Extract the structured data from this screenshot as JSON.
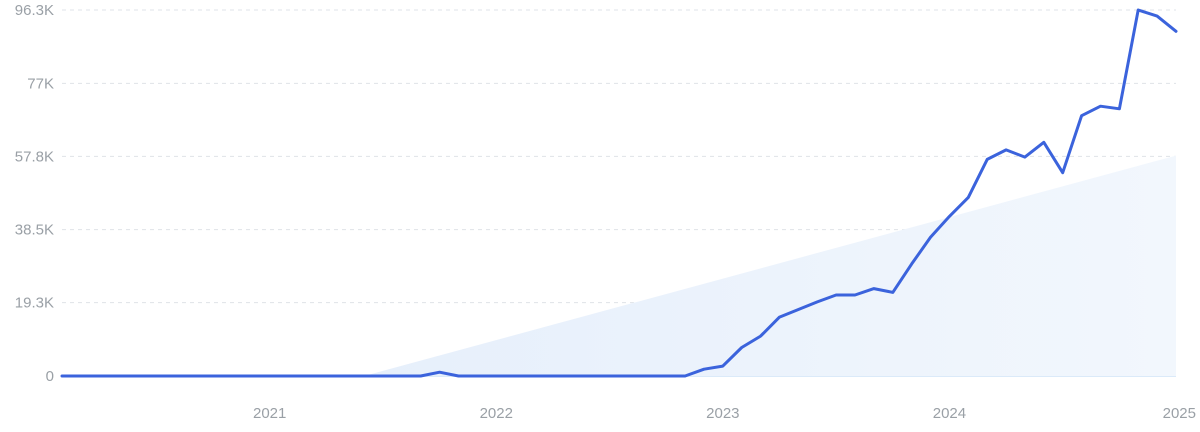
{
  "chart_data": {
    "type": "line",
    "title": "",
    "xlabel": "",
    "ylabel": "",
    "x_ticks": [
      "2021",
      "2022",
      "2023",
      "2024",
      "2025"
    ],
    "y_ticks": [
      "0",
      "19.3K",
      "38.5K",
      "57.8K",
      "77K",
      "96.3K"
    ],
    "y_tick_values": [
      0,
      19300,
      38500,
      57800,
      77000,
      96300
    ],
    "ylim": [
      0,
      96300
    ],
    "xlim": [
      "2020-02",
      "2025-01"
    ],
    "grid": true,
    "series": [
      {
        "x": [
          "2020-02",
          "2020-03",
          "2020-04",
          "2020-05",
          "2020-06",
          "2020-07",
          "2020-08",
          "2020-09",
          "2020-10",
          "2020-11",
          "2020-12",
          "2021-01",
          "2021-02",
          "2021-03",
          "2021-04",
          "2021-05",
          "2021-06",
          "2021-07",
          "2021-08",
          "2021-09",
          "2021-10",
          "2021-11",
          "2021-12",
          "2022-01",
          "2022-02",
          "2022-03",
          "2022-04",
          "2022-05",
          "2022-06",
          "2022-07",
          "2022-08",
          "2022-09",
          "2022-10",
          "2022-11",
          "2022-12",
          "2023-01",
          "2023-02",
          "2023-03",
          "2023-04",
          "2023-05",
          "2023-06",
          "2023-07",
          "2023-08",
          "2023-09",
          "2023-10",
          "2023-11",
          "2023-12",
          "2024-01",
          "2024-02",
          "2024-03",
          "2024-04",
          "2024-05",
          "2024-06",
          "2024-07",
          "2024-08",
          "2024-09",
          "2024-10",
          "2024-11",
          "2024-12",
          "2025-01"
        ],
        "values": [
          0,
          0,
          0,
          0,
          0,
          0,
          0,
          0,
          0,
          0,
          0,
          0,
          0,
          0,
          0,
          0,
          0,
          0,
          0,
          0,
          1000,
          0,
          0,
          0,
          0,
          0,
          0,
          0,
          0,
          0,
          0,
          0,
          0,
          0,
          1800,
          2600,
          7500,
          10500,
          15500,
          17500,
          19500,
          21300,
          21300,
          23000,
          22000,
          29500,
          36500,
          42000,
          47000,
          57000,
          59500,
          57600,
          61500,
          53500,
          68500,
          71000,
          70300,
          96300,
          94700,
          90700
        ]
      }
    ],
    "trend": {
      "start_x": "2021-06",
      "start_y": 0,
      "end_x": "2025-01",
      "end_y": 58000
    },
    "colors": {
      "line": "#3b63dc",
      "trend_fill": "#e8f1fc",
      "axis": "#cfe3f7",
      "text": "#9aa0a6"
    }
  }
}
